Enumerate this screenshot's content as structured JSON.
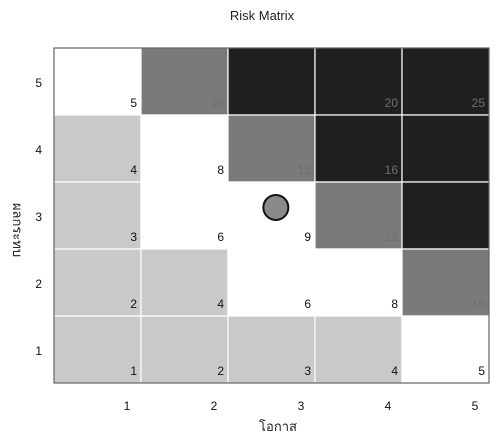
{
  "chart_data": {
    "type": "heatmap",
    "title": "Risk Matrix",
    "xlabel": "โอกาส",
    "ylabel": "ผลกระทบ",
    "x_ticks": [
      "1",
      "2",
      "3",
      "4",
      "5"
    ],
    "y_ticks": [
      "1",
      "2",
      "3",
      "4",
      "5"
    ],
    "cells": [
      {
        "x": 1,
        "y": 5,
        "label": "5",
        "level": "low-white"
      },
      {
        "x": 2,
        "y": 5,
        "label": "10",
        "level": "high"
      },
      {
        "x": 3,
        "y": 5,
        "label": "",
        "level": "extreme"
      },
      {
        "x": 4,
        "y": 5,
        "label": "20",
        "level": "extreme"
      },
      {
        "x": 5,
        "y": 5,
        "label": "25",
        "level": "extreme"
      },
      {
        "x": 1,
        "y": 4,
        "label": "4",
        "level": "low-gray"
      },
      {
        "x": 2,
        "y": 4,
        "label": "8",
        "level": "low-white"
      },
      {
        "x": 3,
        "y": 4,
        "label": "12",
        "level": "high"
      },
      {
        "x": 4,
        "y": 4,
        "label": "16",
        "level": "extreme"
      },
      {
        "x": 5,
        "y": 4,
        "label": "",
        "level": "extreme"
      },
      {
        "x": 1,
        "y": 3,
        "label": "3",
        "level": "low-gray"
      },
      {
        "x": 2,
        "y": 3,
        "label": "6",
        "level": "low-white"
      },
      {
        "x": 3,
        "y": 3,
        "label": "9",
        "level": "low-white"
      },
      {
        "x": 4,
        "y": 3,
        "label": "12",
        "level": "high"
      },
      {
        "x": 5,
        "y": 3,
        "label": "",
        "level": "extreme"
      },
      {
        "x": 1,
        "y": 2,
        "label": "2",
        "level": "low-gray"
      },
      {
        "x": 2,
        "y": 2,
        "label": "4",
        "level": "low-gray"
      },
      {
        "x": 3,
        "y": 2,
        "label": "6",
        "level": "low-white"
      },
      {
        "x": 4,
        "y": 2,
        "label": "8",
        "level": "low-white"
      },
      {
        "x": 5,
        "y": 2,
        "label": "10",
        "level": "high"
      },
      {
        "x": 1,
        "y": 1,
        "label": "1",
        "level": "low-gray"
      },
      {
        "x": 2,
        "y": 1,
        "label": "2",
        "level": "low-gray"
      },
      {
        "x": 3,
        "y": 1,
        "label": "3",
        "level": "low-gray"
      },
      {
        "x": 4,
        "y": 1,
        "label": "4",
        "level": "low-gray"
      },
      {
        "x": 5,
        "y": 1,
        "label": "5",
        "level": "low-white"
      }
    ],
    "marker": {
      "x": 3,
      "y": 3,
      "shape": "circle"
    },
    "colors": {
      "low-white": "#ffffff",
      "low-gray": "#c9c9c9",
      "high": "#7a7a7a",
      "extreme": "#1f1f1f",
      "marker": "#8a8a8a"
    },
    "grid": true
  }
}
